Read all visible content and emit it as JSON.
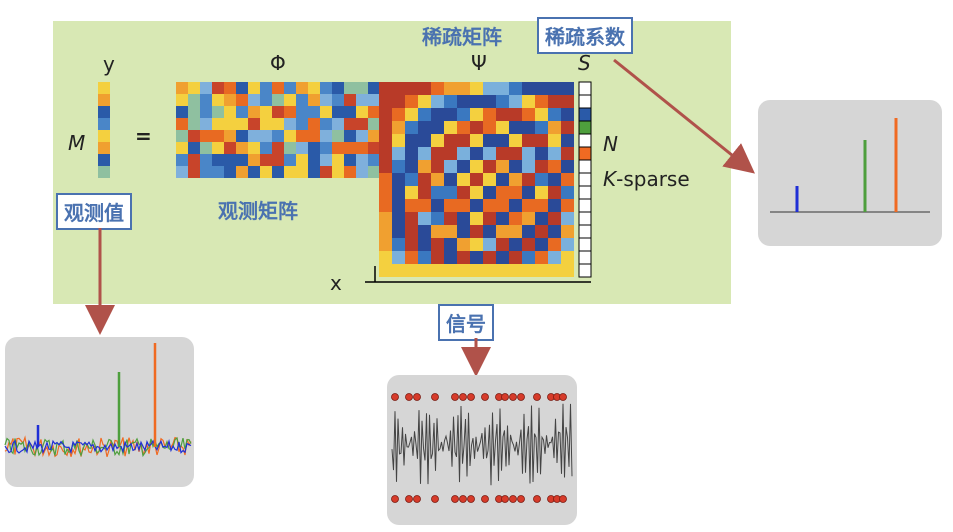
{
  "equation": {
    "y_label": "y",
    "m_label": "M",
    "equals": "=",
    "phi_label": "Φ",
    "psi_label": "Ψ",
    "s_label": "S",
    "x_label": "x",
    "n_label": "N",
    "k_sparse_label": "K-sparse"
  },
  "labels": {
    "sparse_matrix": "稀疏矩阵",
    "sparse_coeff": "稀疏系数",
    "observed_value": "观测值",
    "observation_matrix": "观测矩阵",
    "signal": "信号"
  },
  "colors": {
    "panel": "#d8e8b4",
    "label_blue": "#4a72b0",
    "arrow": "#b0524a",
    "inset_bg": "#d6d6d6",
    "spike_blue": "#1f2fd6",
    "spike_green": "#4e9f3d",
    "spike_orange": "#f06a22",
    "dot_red": "#d63b2a"
  }
}
